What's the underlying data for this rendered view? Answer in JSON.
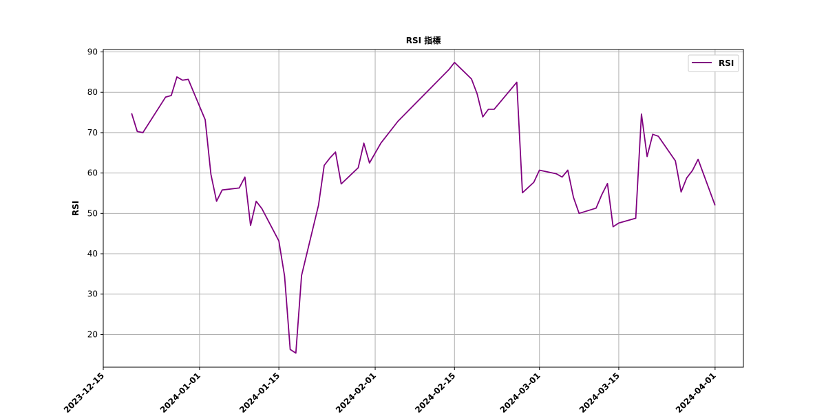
{
  "chart_data": {
    "type": "line",
    "title": "RSI 指標",
    "xlabel": "",
    "ylabel": "RSI",
    "x_ticks": [
      "2023-12-15",
      "2024-01-01",
      "2024-01-15",
      "2024-02-01",
      "2024-02-15",
      "2024-03-01",
      "2024-03-15",
      "2024-04-01"
    ],
    "y_ticks": [
      20,
      30,
      40,
      50,
      60,
      70,
      80,
      90
    ],
    "xlim": [
      "2023-12-15",
      "2024-04-06"
    ],
    "ylim": [
      11.9,
      90.6
    ],
    "grid": true,
    "legend": "top-right",
    "colors": {
      "line": "#800080",
      "grid": "#b0b0b0",
      "axis": "#000000"
    },
    "series": [
      {
        "name": "RSI",
        "points": [
          [
            "2023-12-20",
            74.8
          ],
          [
            "2023-12-21",
            70.3
          ],
          [
            "2023-12-22",
            70.0
          ],
          [
            "2023-12-26",
            78.8
          ],
          [
            "2023-12-27",
            79.2
          ],
          [
            "2023-12-28",
            83.8
          ],
          [
            "2023-12-29",
            83.0
          ],
          [
            "2023-12-30",
            83.2
          ],
          [
            "2024-01-02",
            73.2
          ],
          [
            "2024-01-03",
            59.7
          ],
          [
            "2024-01-04",
            53.0
          ],
          [
            "2024-01-05",
            55.8
          ],
          [
            "2024-01-08",
            56.3
          ],
          [
            "2024-01-09",
            59.0
          ],
          [
            "2024-01-10",
            47.0
          ],
          [
            "2024-01-11",
            53.0
          ],
          [
            "2024-01-12",
            51.2
          ],
          [
            "2024-01-15",
            43.2
          ],
          [
            "2024-01-16",
            34.5
          ],
          [
            "2024-01-17",
            16.3
          ],
          [
            "2024-01-18",
            15.4
          ],
          [
            "2024-01-19",
            34.6
          ],
          [
            "2024-01-22",
            52.0
          ],
          [
            "2024-01-23",
            61.9
          ],
          [
            "2024-01-24",
            63.7
          ],
          [
            "2024-01-25",
            65.2
          ],
          [
            "2024-01-26",
            57.3
          ],
          [
            "2024-01-29",
            61.3
          ],
          [
            "2024-01-30",
            67.4
          ],
          [
            "2024-01-31",
            62.5
          ],
          [
            "2024-02-02",
            67.4
          ],
          [
            "2024-02-05",
            72.8
          ],
          [
            "2024-02-14",
            85.6
          ],
          [
            "2024-02-15",
            87.4
          ],
          [
            "2024-02-18",
            83.3
          ],
          [
            "2024-02-19",
            79.6
          ],
          [
            "2024-02-20",
            73.9
          ],
          [
            "2024-02-21",
            75.8
          ],
          [
            "2024-02-22",
            75.8
          ],
          [
            "2024-02-26",
            82.5
          ],
          [
            "2024-02-27",
            55.1
          ],
          [
            "2024-02-29",
            57.7
          ],
          [
            "2024-03-01",
            60.7
          ],
          [
            "2024-03-04",
            59.8
          ],
          [
            "2024-03-05",
            59.0
          ],
          [
            "2024-03-06",
            60.7
          ],
          [
            "2024-03-07",
            54.0
          ],
          [
            "2024-03-08",
            50.0
          ],
          [
            "2024-03-11",
            51.3
          ],
          [
            "2024-03-12",
            54.6
          ],
          [
            "2024-03-13",
            57.4
          ],
          [
            "2024-03-14",
            46.7
          ],
          [
            "2024-03-15",
            47.6
          ],
          [
            "2024-03-18",
            48.8
          ],
          [
            "2024-03-19",
            74.6
          ],
          [
            "2024-03-20",
            64.1
          ],
          [
            "2024-03-21",
            69.6
          ],
          [
            "2024-03-22",
            69.1
          ],
          [
            "2024-03-25",
            63.0
          ],
          [
            "2024-03-26",
            55.3
          ],
          [
            "2024-03-27",
            58.8
          ],
          [
            "2024-03-28",
            60.6
          ],
          [
            "2024-03-29",
            63.4
          ],
          [
            "2024-04-01",
            52.0
          ]
        ]
      }
    ]
  }
}
